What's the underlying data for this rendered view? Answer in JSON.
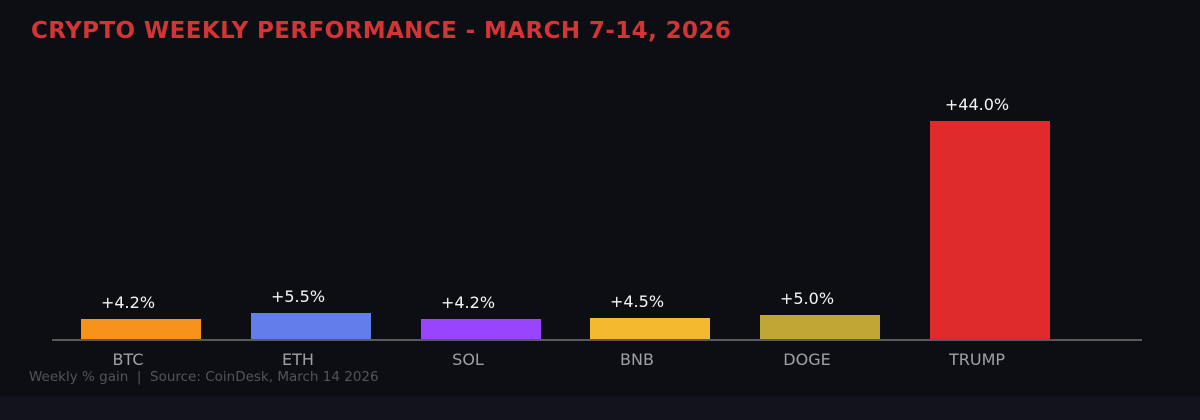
{
  "header": {
    "title": "CRYPTO WEEKLY PERFORMANCE - MARCH 7-14, 2026",
    "title_color": "#d23535"
  },
  "footer": {
    "caption": "Weekly % gain  |  Source: CoinDesk, March 14 2026",
    "caption_color": "#52545c"
  },
  "chart_data": {
    "type": "bar",
    "title": "CRYPTO WEEKLY PERFORMANCE - MARCH 7-14, 2026",
    "categories": [
      "BTC",
      "ETH",
      "SOL",
      "BNB",
      "DOGE",
      "TRUMP"
    ],
    "values": [
      4.2,
      5.5,
      4.2,
      4.5,
      5.0,
      44.0
    ],
    "value_labels": [
      "+4.2%",
      "+5.5%",
      "+4.2%",
      "+4.5%",
      "+5.0%",
      "+44.0%"
    ],
    "bar_colors": [
      "#f7931a",
      "#627eea",
      "#9945ff",
      "#f3ba2f",
      "#c0a634",
      "#df2b2b"
    ],
    "xlabel": "",
    "ylabel": "Weekly % gain",
    "ylim": [
      0,
      48.5
    ],
    "grid": false,
    "legend": "none",
    "background_color": "#0d0e14",
    "axis_line_color": "#5a5a5c",
    "value_label_color": "#f5f5f5",
    "tick_label_color": "#a0a0a6"
  }
}
